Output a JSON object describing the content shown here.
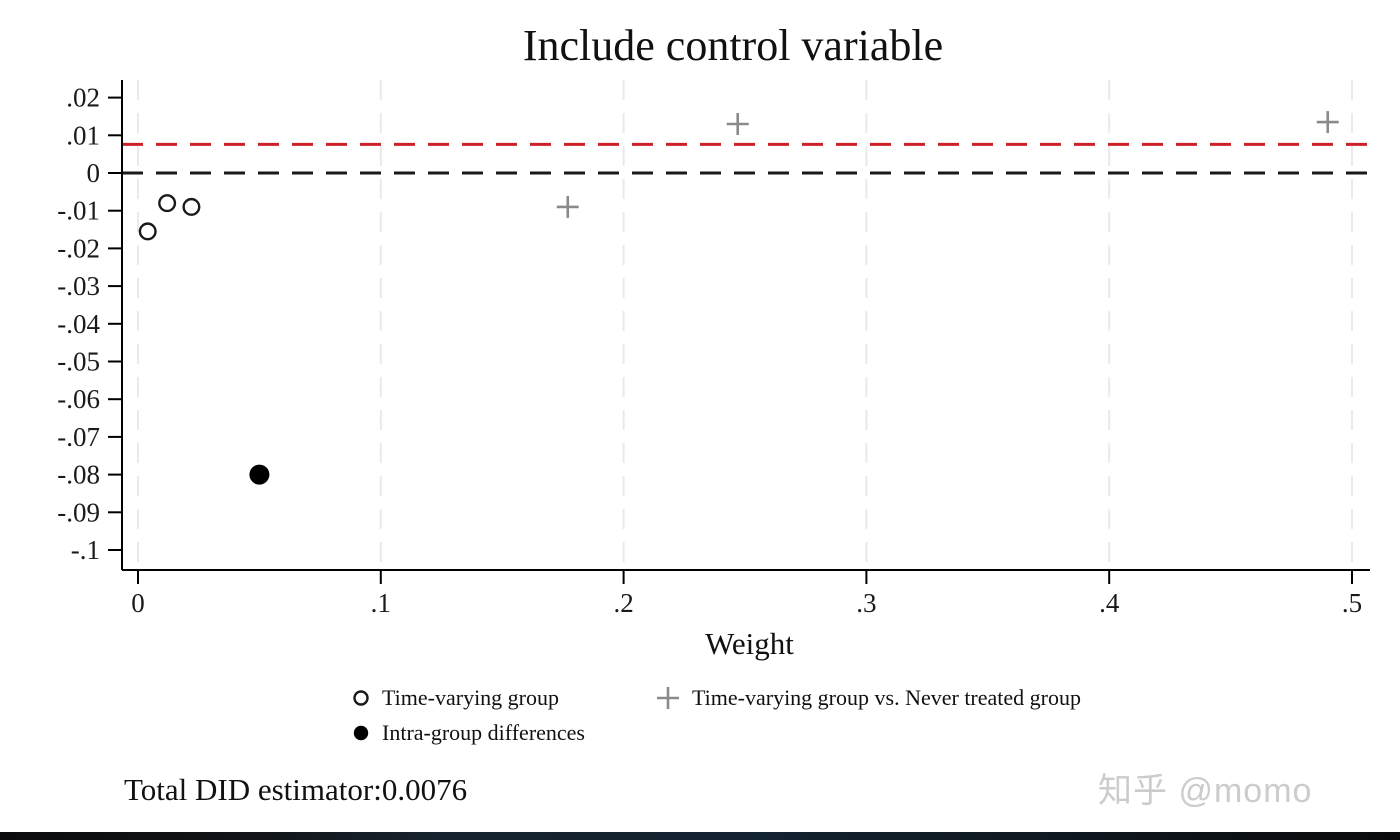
{
  "page": {
    "footer_note": "Total DID estimator:0.0076",
    "watermark": "知乎 @momo"
  },
  "colors": {
    "open_circle": "#1a1a1a",
    "filled_circle": "#000000",
    "plus_marker": "#8a8a8a",
    "reference_line_red": "#cc2128",
    "zero_line": "#1a1a1a",
    "gridline": "#eaeaea",
    "axis": "#000000",
    "text": "#1a1a1a",
    "watermark": "#cccccc"
  },
  "chart_data": {
    "type": "scatter",
    "title": "Include control variable",
    "xlabel": "Weight",
    "ylabel": "",
    "xlim": [
      -0.0066,
      0.5085
    ],
    "ylim": [
      -0.105,
      0.0247
    ],
    "grid": "vertical-dashed",
    "legend_position": "bottom",
    "total_did_estimator": 0.0076,
    "x_ticks": [
      {
        "value": 0.0,
        "label": "0"
      },
      {
        "value": 0.1,
        "label": ".1"
      },
      {
        "value": 0.2,
        "label": ".2"
      },
      {
        "value": 0.3,
        "label": ".3"
      },
      {
        "value": 0.4,
        "label": ".4"
      },
      {
        "value": 0.5,
        "label": ".5"
      }
    ],
    "y_ticks": [
      {
        "value": 0.02,
        "label": ".02"
      },
      {
        "value": 0.01,
        "label": ".01"
      },
      {
        "value": 0.0,
        "label": "0"
      },
      {
        "value": -0.01,
        "label": "-.01"
      },
      {
        "value": -0.02,
        "label": "-.02"
      },
      {
        "value": -0.03,
        "label": "-.03"
      },
      {
        "value": -0.04,
        "label": "-.04"
      },
      {
        "value": -0.05,
        "label": "-.05"
      },
      {
        "value": -0.06,
        "label": "-.06"
      },
      {
        "value": -0.07,
        "label": "-.07"
      },
      {
        "value": -0.08,
        "label": "-.08"
      },
      {
        "value": -0.09,
        "label": "-.09"
      },
      {
        "value": -0.1,
        "label": "-.1"
      }
    ],
    "reference_lines": [
      {
        "name": "total-did-estimator-line",
        "value": 0.0076,
        "color_key": "reference_line_red",
        "style": "dashed"
      },
      {
        "name": "zero-line",
        "value": 0.0,
        "color_key": "zero_line",
        "style": "dashed"
      }
    ],
    "series": [
      {
        "name": "Time-varying group",
        "marker": "open-circle",
        "color_key": "open_circle",
        "points": [
          {
            "x": 0.004,
            "y": -0.0155
          },
          {
            "x": 0.012,
            "y": -0.008
          },
          {
            "x": 0.022,
            "y": -0.009
          }
        ]
      },
      {
        "name": "Intra-group differences",
        "marker": "filled-circle",
        "color_key": "filled_circle",
        "points": [
          {
            "x": 0.05,
            "y": -0.08
          }
        ]
      },
      {
        "name": "Time-varying group vs. Never treated group",
        "marker": "plus",
        "color_key": "plus_marker",
        "points": [
          {
            "x": 0.177,
            "y": -0.009
          },
          {
            "x": 0.247,
            "y": 0.013
          },
          {
            "x": 0.49,
            "y": 0.0135
          }
        ]
      }
    ]
  }
}
